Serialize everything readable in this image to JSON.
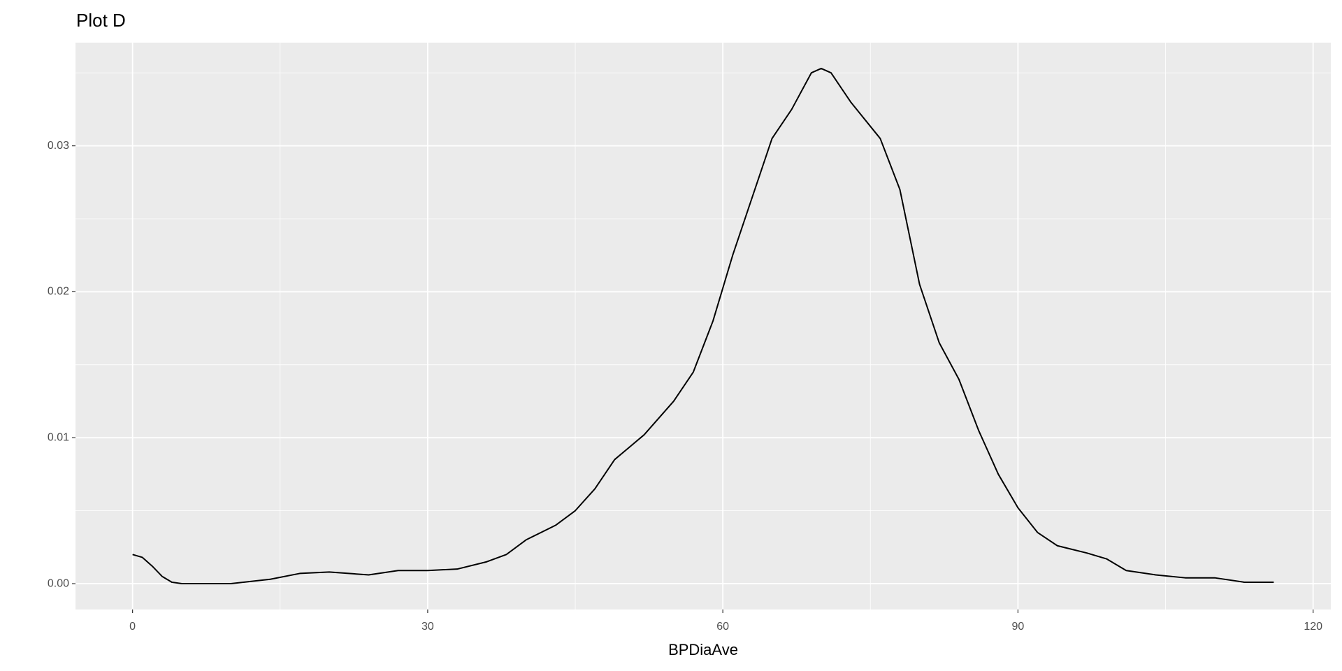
{
  "chart_data": {
    "type": "line",
    "title": "Plot D",
    "x_label": "BPDiaAve",
    "x": [
      0,
      1,
      2,
      3,
      4,
      5,
      10,
      14,
      17,
      20,
      24,
      27,
      30,
      33,
      36,
      38,
      40,
      43,
      45,
      47,
      49,
      52,
      55,
      57,
      59,
      61,
      63,
      65,
      67,
      69,
      70,
      71,
      73,
      76,
      78,
      80,
      82,
      84,
      86,
      88,
      90,
      92,
      94,
      97,
      99,
      101,
      104,
      107,
      110,
      113,
      116
    ],
    "series": [
      {
        "color": "#000000",
        "values": [
          0.002,
          0.0018,
          0.0012,
          0.0005,
          0.0001,
          0.0,
          0.0,
          0.0003,
          0.0007,
          0.0008,
          0.0006,
          0.0009,
          0.0009,
          0.001,
          0.0015,
          0.002,
          0.003,
          0.004,
          0.005,
          0.0065,
          0.0085,
          0.0102,
          0.0125,
          0.0145,
          0.018,
          0.0225,
          0.0265,
          0.0305,
          0.0325,
          0.035,
          0.0353,
          0.035,
          0.033,
          0.0305,
          0.027,
          0.0205,
          0.0165,
          0.014,
          0.0105,
          0.0075,
          0.0052,
          0.0035,
          0.0026,
          0.0021,
          0.0017,
          0.0009,
          0.0006,
          0.0004,
          0.0004,
          0.0001,
          0.0001
        ]
      }
    ],
    "xlim": [
      -5.8,
      121.8
    ],
    "xticks": [
      0,
      30,
      60,
      90,
      120
    ],
    "x_minor_breaks": [
      15,
      45,
      75,
      105
    ],
    "ylim": [
      -0.00177,
      0.03707
    ],
    "yticks": [
      {
        "value": 0,
        "label": "0.00"
      },
      0.01,
      0.02,
      0.03
    ],
    "y_minor_breaks": [
      0.005,
      0.015,
      0.025,
      0.035
    ],
    "grid": true,
    "panel_color": "#ebebeb",
    "grid_color": "#ffffff"
  }
}
